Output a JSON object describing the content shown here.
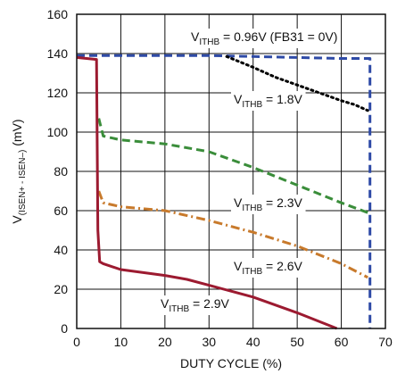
{
  "chart_data": {
    "type": "line",
    "title": "",
    "xlabel": "DUTY CYCLE (%)",
    "ylabel": "V(ISEN+ - ISEN–) (mV)",
    "ylabel_parts": {
      "main": "V",
      "sub": "(ISEN+ - ISEN–)",
      "unit": " (mV)"
    },
    "xlim": [
      0,
      70
    ],
    "ylim": [
      0,
      160
    ],
    "x_ticks": [
      "0",
      "10",
      "20",
      "30",
      "40",
      "50",
      "60",
      "70"
    ],
    "y_ticks": [
      "0",
      "20",
      "40",
      "60",
      "80",
      "100",
      "120",
      "140",
      "160"
    ],
    "grid": true,
    "legend": "none (inline labels)",
    "series": [
      {
        "name": "VITHB = 0.96V (FB31 = 0V)",
        "color": "#2e4aa6",
        "style": "dashed",
        "points": [
          [
            0,
            139
          ],
          [
            10,
            139
          ],
          [
            20,
            139
          ],
          [
            30,
            139
          ],
          [
            40,
            138.5
          ],
          [
            50,
            138
          ],
          [
            60,
            137.5
          ],
          [
            66.5,
            137.5
          ],
          [
            66.5,
            0
          ]
        ]
      },
      {
        "name": "VITHB = 1.8V",
        "color": "#000000",
        "style": "dotted",
        "points": [
          [
            34,
            138.5
          ],
          [
            40,
            133
          ],
          [
            45,
            128
          ],
          [
            50,
            124
          ],
          [
            55,
            120
          ],
          [
            60,
            116
          ],
          [
            63,
            114
          ],
          [
            66,
            111
          ]
        ]
      },
      {
        "name": "VITHB = 2.3V",
        "color": "#3a8d3a",
        "style": "dashed",
        "points": [
          [
            5,
            107
          ],
          [
            6,
            98
          ],
          [
            10,
            96
          ],
          [
            20,
            94
          ],
          [
            30,
            90
          ],
          [
            40,
            82
          ],
          [
            50,
            73
          ],
          [
            60,
            64
          ],
          [
            66,
            59
          ]
        ]
      },
      {
        "name": "VITHB = 2.6V",
        "color": "#c87a2c",
        "style": "dashdot",
        "points": [
          [
            5,
            70
          ],
          [
            6,
            64
          ],
          [
            10,
            62
          ],
          [
            20,
            60
          ],
          [
            30,
            55
          ],
          [
            40,
            49
          ],
          [
            50,
            42
          ],
          [
            60,
            33
          ],
          [
            66,
            26
          ]
        ]
      },
      {
        "name": "VITHB = 2.9V",
        "color": "#9c1a30",
        "style": "solid",
        "points": [
          [
            0,
            138
          ],
          [
            4.5,
            137
          ],
          [
            4.5,
            137
          ],
          [
            4.8,
            50
          ],
          [
            5.2,
            34
          ],
          [
            6,
            33
          ],
          [
            10,
            30
          ],
          [
            20,
            27
          ],
          [
            25,
            25
          ],
          [
            30,
            22
          ],
          [
            40,
            16
          ],
          [
            50,
            8
          ],
          [
            59,
            0
          ]
        ]
      }
    ],
    "annotations": [
      {
        "main": "V",
        "sub": "ITHB",
        "rest": " = 0.96V (FB31 = 0V)"
      },
      {
        "main": "V",
        "sub": "ITHB",
        "rest": " = 1.8V"
      },
      {
        "main": "V",
        "sub": "ITHB",
        "rest": " = 2.3V"
      },
      {
        "main": "V",
        "sub": "ITHB",
        "rest": " = 2.6V"
      },
      {
        "main": "V",
        "sub": "ITHB",
        "rest": " = 2.9V"
      }
    ]
  }
}
